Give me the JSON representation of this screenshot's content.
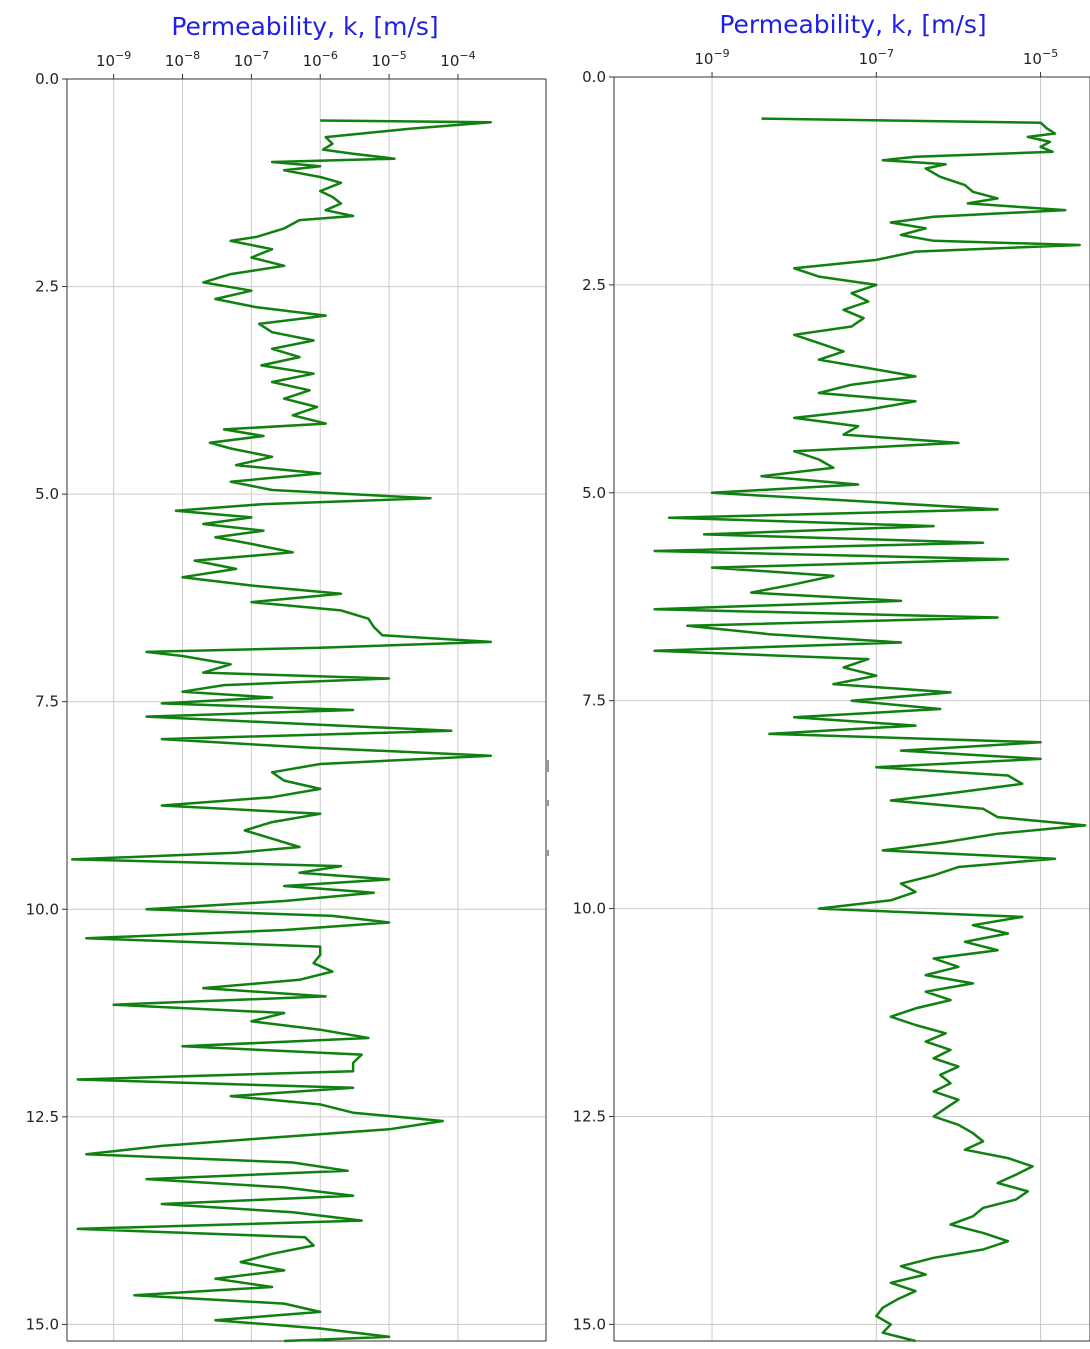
{
  "colors": {
    "title": "#1f1fe6",
    "line": "#108010",
    "grid": "#cccccc",
    "axis": "#333333"
  },
  "chart_data": [
    {
      "type": "line",
      "title": "Permeability, k, [m/s]",
      "xlabel": "Permeability, k, [m/s]",
      "ylabel": "",
      "x_scale": "log",
      "xlim": [
        2.1e-10,
        0.0019
      ],
      "ylim": [
        0.0,
        15.2
      ],
      "y_inverted": true,
      "grid": true,
      "x_ticks": [
        {
          "base": "10",
          "exp": "−9",
          "value": 1e-09
        },
        {
          "base": "10",
          "exp": "−8",
          "value": 1e-08
        },
        {
          "base": "10",
          "exp": "−7",
          "value": 1e-07
        },
        {
          "base": "10",
          "exp": "−6",
          "value": 1e-06
        },
        {
          "base": "10",
          "exp": "−5",
          "value": 1e-05
        },
        {
          "base": "10",
          "exp": "−4",
          "value": 0.0001
        }
      ],
      "y_ticks": [
        "0.0",
        "2.5",
        "5.0",
        "7.5",
        "10.0",
        "12.5",
        "15.0"
      ],
      "series": [
        {
          "depth": [
            0.5,
            0.52,
            0.6,
            0.7,
            0.78,
            0.85,
            0.9,
            0.96,
            1.0,
            1.05,
            1.1,
            1.18,
            1.25,
            1.35,
            1.42,
            1.5,
            1.58,
            1.65,
            1.7,
            1.8,
            1.9,
            1.95,
            2.05,
            2.15,
            2.25,
            2.35,
            2.45,
            2.55,
            2.65,
            2.75,
            2.85,
            2.95,
            3.05,
            3.15,
            3.25,
            3.35,
            3.45,
            3.55,
            3.65,
            3.75,
            3.85,
            3.95,
            4.05,
            4.15,
            4.22,
            4.3,
            4.38,
            4.45,
            4.55,
            4.65,
            4.75,
            4.85,
            4.95,
            5.05,
            5.12,
            5.2,
            5.28,
            5.36,
            5.44,
            5.52,
            5.6,
            5.7,
            5.8,
            5.9,
            6.0,
            6.1,
            6.2,
            6.3,
            6.4,
            6.5,
            6.6,
            6.7,
            6.78,
            6.85,
            6.9,
            6.95,
            7.05,
            7.15,
            7.22,
            7.3,
            7.38,
            7.45,
            7.52,
            7.6,
            7.68,
            7.75,
            7.85,
            7.95,
            8.05,
            8.15,
            8.25,
            8.35,
            8.45,
            8.55,
            8.65,
            8.75,
            8.85,
            8.95,
            9.05,
            9.15,
            9.25,
            9.32,
            9.4,
            9.48,
            9.56,
            9.64,
            9.72,
            9.8,
            9.9,
            10.0,
            10.08,
            10.16,
            10.25,
            10.35,
            10.45,
            10.55,
            10.65,
            10.75,
            10.85,
            10.95,
            11.05,
            11.15,
            11.25,
            11.35,
            11.45,
            11.55,
            11.65,
            11.75,
            11.85,
            11.95,
            12.05,
            12.15,
            12.25,
            12.35,
            12.45,
            12.55,
            12.65,
            12.75,
            12.85,
            12.95,
            13.05,
            13.15,
            13.25,
            13.35,
            13.45,
            13.55,
            13.65,
            13.75,
            13.85,
            13.95,
            14.05,
            14.15,
            14.25,
            14.35,
            14.45,
            14.55,
            14.65,
            14.75,
            14.85,
            14.95,
            15.05,
            15.15,
            15.2
          ],
          "k": [
            1e-06,
            0.0003,
            2e-05,
            1.2e-06,
            1.5e-06,
            1.1e-06,
            3e-06,
            1.2e-05,
            2e-07,
            1e-06,
            3e-07,
            1e-06,
            2e-06,
            1e-06,
            1.5e-06,
            2e-06,
            1.2e-06,
            3e-06,
            5e-07,
            3e-07,
            1.2e-07,
            5e-08,
            2e-07,
            1e-07,
            3e-07,
            5e-08,
            2e-08,
            1e-07,
            3e-08,
            1.2e-07,
            1.2e-06,
            1.3e-07,
            2e-07,
            8e-07,
            2e-07,
            5e-07,
            1.4e-07,
            8e-07,
            2e-07,
            7e-07,
            3e-07,
            9e-07,
            4e-07,
            1.2e-06,
            4e-08,
            1.5e-07,
            2.5e-08,
            5e-08,
            2e-07,
            6e-08,
            1e-06,
            5e-08,
            2e-07,
            4e-05,
            1.5e-07,
            8e-09,
            1e-07,
            2e-08,
            1.5e-07,
            3e-08,
            1e-07,
            4e-07,
            1.5e-08,
            6e-08,
            1e-08,
            1e-07,
            2e-06,
            1e-07,
            2e-06,
            5e-06,
            6e-06,
            8e-06,
            0.0003,
            1e-06,
            3e-09,
            1e-08,
            5e-08,
            2e-08,
            1e-05,
            4e-08,
            1e-08,
            2e-07,
            5e-09,
            3e-06,
            3e-09,
            2e-07,
            8e-05,
            5e-09,
            6e-07,
            0.0003,
            1e-06,
            2e-07,
            3e-07,
            1e-06,
            2e-07,
            5e-09,
            1e-06,
            2e-07,
            8e-08,
            2e-07,
            5e-07,
            6e-08,
            2.5e-10,
            2e-06,
            5e-07,
            1e-05,
            3e-07,
            6e-06,
            3e-07,
            3e-09,
            1.5e-06,
            1e-05,
            3e-07,
            4e-10,
            1e-06,
            1e-06,
            8e-07,
            1.5e-06,
            5e-07,
            2e-08,
            1.2e-06,
            1e-09,
            3e-07,
            1e-07,
            1e-06,
            5e-06,
            1e-08,
            4e-06,
            3e-06,
            3e-06,
            3e-10,
            3e-06,
            5e-08,
            1e-06,
            3e-06,
            6e-05,
            1e-05,
            2e-07,
            5e-09,
            4e-10,
            4e-07,
            2.5e-06,
            3e-09,
            3e-07,
            3e-06,
            5e-09,
            4e-07,
            4e-06,
            3e-10,
            6e-07,
            8e-07,
            2e-07,
            7e-08,
            3e-07,
            3e-08,
            2e-07,
            2e-09,
            3e-07,
            1e-06,
            3e-08,
            1e-06,
            1e-05,
            3e-07,
            3e-06,
            1.5e-05,
            1e-05
          ]
        }
      ]
    },
    {
      "type": "line",
      "title": "Permeability, k, [m/s]",
      "xlabel": "Permeability, k, [m/s]",
      "ylabel": "",
      "x_scale": "log",
      "xlim": [
        6.4e-11,
        4e-05
      ],
      "ylim": [
        0.0,
        15.2
      ],
      "y_inverted": true,
      "grid": true,
      "x_ticks": [
        {
          "base": "10",
          "exp": "−9",
          "value": 1e-09
        },
        {
          "base": "10",
          "exp": "−7",
          "value": 1e-07
        },
        {
          "base": "10",
          "exp": "−5",
          "value": 1e-05
        }
      ],
      "y_ticks": [
        "0.0",
        "2.5",
        "5.0",
        "7.5",
        "10.0",
        "12.5",
        "15.0"
      ],
      "series": [
        {
          "depth": [
            0.5,
            0.55,
            0.62,
            0.68,
            0.72,
            0.78,
            0.84,
            0.9,
            0.96,
            1.0,
            1.05,
            1.1,
            1.2,
            1.3,
            1.38,
            1.46,
            1.52,
            1.6,
            1.68,
            1.75,
            1.82,
            1.9,
            1.97,
            2.02,
            2.1,
            2.2,
            2.3,
            2.4,
            2.5,
            2.6,
            2.7,
            2.8,
            2.9,
            3.0,
            3.1,
            3.2,
            3.3,
            3.4,
            3.5,
            3.6,
            3.7,
            3.8,
            3.9,
            4.0,
            4.1,
            4.2,
            4.3,
            4.4,
            4.5,
            4.6,
            4.7,
            4.8,
            4.9,
            5.0,
            5.1,
            5.2,
            5.3,
            5.4,
            5.5,
            5.6,
            5.7,
            5.8,
            5.9,
            6.0,
            6.1,
            6.2,
            6.3,
            6.4,
            6.5,
            6.6,
            6.7,
            6.8,
            6.9,
            7.0,
            7.1,
            7.2,
            7.3,
            7.4,
            7.5,
            7.6,
            7.7,
            7.8,
            7.9,
            8.0,
            8.1,
            8.2,
            8.3,
            8.4,
            8.5,
            8.6,
            8.7,
            8.8,
            8.9,
            9.0,
            9.1,
            9.2,
            9.3,
            9.4,
            9.5,
            9.6,
            9.7,
            9.8,
            9.9,
            10.0,
            10.1,
            10.2,
            10.3,
            10.4,
            10.5,
            10.6,
            10.7,
            10.8,
            10.9,
            11.0,
            11.1,
            11.2,
            11.3,
            11.4,
            11.5,
            11.6,
            11.7,
            11.8,
            11.9,
            12.0,
            12.1,
            12.2,
            12.3,
            12.4,
            12.5,
            12.6,
            12.7,
            12.8,
            12.9,
            13.0,
            13.1,
            13.2,
            13.3,
            13.4,
            13.5,
            13.6,
            13.7,
            13.8,
            13.9,
            14.0,
            14.1,
            14.2,
            14.3,
            14.4,
            14.5,
            14.6,
            14.7,
            14.8,
            14.9,
            15.0,
            15.1,
            15.2
          ],
          "k": [
            4e-09,
            1e-05,
            1.2e-05,
            1.5e-05,
            7e-06,
            1.3e-05,
            1e-05,
            1.4e-05,
            3e-07,
            1.2e-07,
            7e-07,
            4e-07,
            6e-07,
            1.2e-06,
            1.5e-06,
            3e-06,
            1.3e-06,
            2e-05,
            5e-07,
            1.5e-07,
            4e-07,
            2e-07,
            5e-07,
            3e-05,
            3e-07,
            1e-07,
            1e-08,
            2e-08,
            1e-07,
            5e-08,
            8e-08,
            4e-08,
            7e-08,
            5e-08,
            1e-08,
            2e-08,
            4e-08,
            2e-08,
            8e-08,
            3e-07,
            5e-08,
            2e-08,
            3e-07,
            8e-08,
            1e-08,
            6e-08,
            4e-08,
            1e-06,
            1e-08,
            2e-08,
            3e-08,
            4e-09,
            6e-08,
            1e-09,
            6e-08,
            3e-06,
            3e-10,
            5e-07,
            8e-10,
            2e-06,
            2e-10,
            4e-06,
            1e-09,
            3e-08,
            1e-08,
            3e-09,
            2e-07,
            2e-10,
            3e-06,
            5e-10,
            5e-09,
            2e-07,
            2e-10,
            8e-08,
            4e-08,
            1e-07,
            3e-08,
            8e-07,
            5e-08,
            6e-07,
            1e-08,
            3e-07,
            5e-09,
            1e-05,
            2e-07,
            1e-05,
            1e-07,
            4e-06,
            6e-06,
            1e-06,
            1.5e-07,
            2e-06,
            3e-06,
            3.5e-05,
            3e-06,
            7e-07,
            1.2e-07,
            1.5e-05,
            1e-06,
            5e-07,
            2e-07,
            3e-07,
            1.5e-07,
            2e-08,
            6e-06,
            1.5e-06,
            4e-06,
            1.2e-06,
            3e-06,
            5e-07,
            1e-06,
            4e-07,
            1.5e-06,
            4e-07,
            8e-07,
            3e-07,
            1.5e-07,
            3e-07,
            7e-07,
            4e-07,
            8e-07,
            5e-07,
            1e-06,
            6e-07,
            8e-07,
            5e-07,
            1e-06,
            7e-07,
            5e-07,
            1e-06,
            1.5e-06,
            2e-06,
            1.2e-06,
            4e-06,
            8e-06,
            5e-06,
            3e-06,
            7e-06,
            5e-06,
            2e-06,
            1.5e-06,
            8e-07,
            2e-06,
            4e-06,
            2e-06,
            5e-07,
            2e-07,
            4e-07,
            1.5e-07,
            3e-07,
            1.8e-07,
            1.2e-07,
            1e-07,
            1.5e-07,
            1.2e-07,
            3e-07
          ]
        }
      ]
    }
  ]
}
